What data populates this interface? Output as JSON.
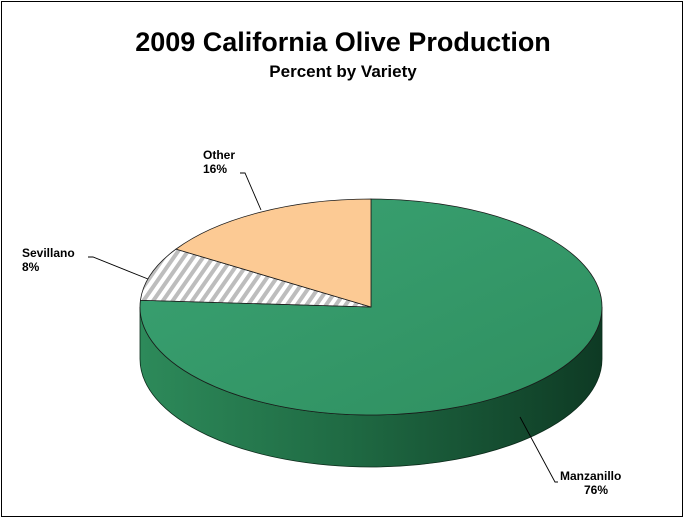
{
  "chart_data": {
    "type": "pie",
    "title": "2009 California Olive Production",
    "subtitle": "Percent by Variety",
    "slices": [
      {
        "label": "Manzanillo",
        "value": 76,
        "value_label": "76%",
        "color": "#339966"
      },
      {
        "label": "Sevillano",
        "value": 8,
        "value_label": "8%",
        "color": "#d9d9d9",
        "pattern": "diagonal-hatch"
      },
      {
        "label": "Other",
        "value": 16,
        "value_label": "16%",
        "color": "#fcca94"
      }
    ],
    "style": "3d",
    "legend": "none"
  }
}
